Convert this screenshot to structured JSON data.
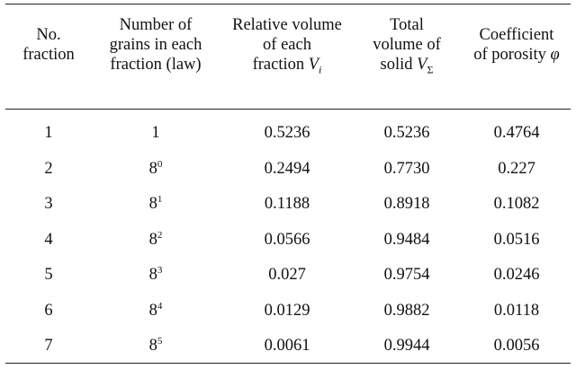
{
  "table": {
    "headers": [
      {
        "lines": [
          "No.",
          "fraction"
        ]
      },
      {
        "lines": [
          "Number of",
          "grains in each",
          "fraction (law)"
        ]
      },
      {
        "lines": [
          "Relative volume",
          "of each"
        ],
        "last_text": "fraction ",
        "last_symbol": "V",
        "last_subscript": "i"
      },
      {
        "lines": [
          "Total",
          "volume of"
        ],
        "last_text": "solid ",
        "last_symbol": "V",
        "last_subscript": "Σ"
      },
      {
        "lines": [
          "Coefficient"
        ],
        "last_text": "of porosity ",
        "last_symbol": "φ"
      }
    ],
    "rows": [
      {
        "no": "1",
        "grains_base": "1",
        "grains_exp": "",
        "rel_volume": "0.5236",
        "total_volume": "0.5236",
        "porosity": "0.4764"
      },
      {
        "no": "2",
        "grains_base": "8",
        "grains_exp": "0",
        "rel_volume": "0.2494",
        "total_volume": "0.7730",
        "porosity": "0.227"
      },
      {
        "no": "3",
        "grains_base": "8",
        "grains_exp": "1",
        "rel_volume": "0.1188",
        "total_volume": "0.8918",
        "porosity": "0.1082"
      },
      {
        "no": "4",
        "grains_base": "8",
        "grains_exp": "2",
        "rel_volume": "0.0566",
        "total_volume": "0.9484",
        "porosity": "0.0516"
      },
      {
        "no": "5",
        "grains_base": "8",
        "grains_exp": "3",
        "rel_volume": "0.027",
        "total_volume": "0.9754",
        "porosity": "0.0246"
      },
      {
        "no": "6",
        "grains_base": "8",
        "grains_exp": "4",
        "rel_volume": "0.0129",
        "total_volume": "0.9882",
        "porosity": "0.0118"
      },
      {
        "no": "7",
        "grains_base": "8",
        "grains_exp": "5",
        "rel_volume": "0.0061",
        "total_volume": "0.9944",
        "porosity": "0.0056"
      }
    ]
  }
}
